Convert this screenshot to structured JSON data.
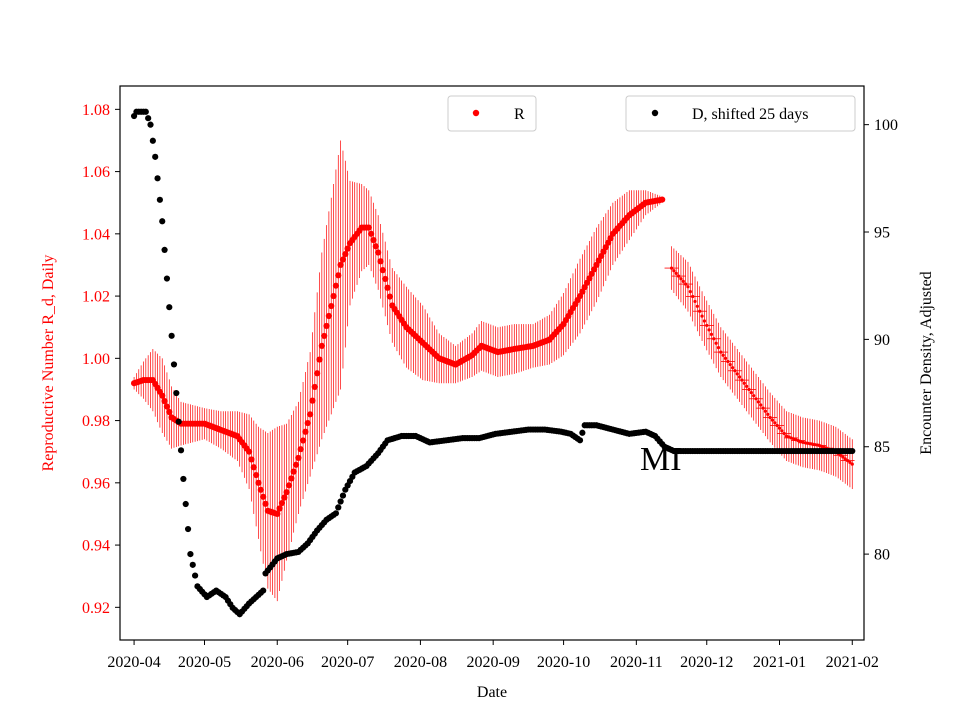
{
  "chart_data": {
    "type": "scatter",
    "xlabel": "Date",
    "x_ticks": [
      "2020-04",
      "2020-05",
      "2020-06",
      "2020-07",
      "2020-08",
      "2020-09",
      "2020-10",
      "2020-11",
      "2020-12",
      "2021-01",
      "2021-02"
    ],
    "x_range": [
      "2020-03-26",
      "2021-02-06"
    ],
    "y_left": {
      "label": "Reproductive Number R_d, Daily",
      "range": [
        0.9095,
        1.0875
      ],
      "ticks": [
        "0.92",
        "0.94",
        "0.96",
        "0.98",
        "1.00",
        "1.02",
        "1.04",
        "1.06",
        "1.08"
      ],
      "color": "#ff0000"
    },
    "y_right": {
      "label": "Encounter Density, Adjusted",
      "range": [
        76.0,
        101.8
      ],
      "ticks": [
        "80",
        "85",
        "90",
        "95",
        "100"
      ],
      "color": "#000000"
    },
    "annotation": "MI",
    "series": [
      {
        "name": "R",
        "axis": "left",
        "color": "#ff0000",
        "marker": "circle",
        "errorbars": true,
        "knots": [
          [
            "2020-04-01",
            0.992,
            0.002
          ],
          [
            "2020-04-05",
            0.993,
            0.006
          ],
          [
            "2020-04-09",
            0.993,
            0.01
          ],
          [
            "2020-04-13",
            0.988,
            0.012
          ],
          [
            "2020-04-17",
            0.981,
            0.01
          ],
          [
            "2020-04-21",
            0.979,
            0.007
          ],
          [
            "2020-05-01",
            0.979,
            0.005
          ],
          [
            "2020-05-08",
            0.977,
            0.006
          ],
          [
            "2020-05-15",
            0.975,
            0.008
          ],
          [
            "2020-05-20",
            0.97,
            0.012
          ],
          [
            "2020-05-24",
            0.96,
            0.018
          ],
          [
            "2020-05-28",
            0.951,
            0.025
          ],
          [
            "2020-06-01",
            0.95,
            0.028
          ],
          [
            "2020-06-05",
            0.957,
            0.022
          ],
          [
            "2020-06-10",
            0.968,
            0.018
          ],
          [
            "2020-06-15",
            0.982,
            0.02
          ],
          [
            "2020-06-20",
            1.004,
            0.03
          ],
          [
            "2020-06-25",
            1.02,
            0.036
          ],
          [
            "2020-06-28",
            1.03,
            0.04
          ],
          [
            "2020-07-02",
            1.037,
            0.02
          ],
          [
            "2020-07-07",
            1.042,
            0.014
          ],
          [
            "2020-07-10",
            1.042,
            0.012
          ],
          [
            "2020-07-14",
            1.034,
            0.012
          ],
          [
            "2020-07-20",
            1.017,
            0.012
          ],
          [
            "2020-07-26",
            1.01,
            0.013
          ],
          [
            "2020-08-02",
            1.005,
            0.012
          ],
          [
            "2020-08-09",
            1.0,
            0.008
          ],
          [
            "2020-08-16",
            0.998,
            0.006
          ],
          [
            "2020-08-23",
            1.001,
            0.007
          ],
          [
            "2020-08-27",
            1.004,
            0.008
          ],
          [
            "2020-09-03",
            1.002,
            0.008
          ],
          [
            "2020-09-10",
            1.003,
            0.008
          ],
          [
            "2020-09-18",
            1.004,
            0.007
          ],
          [
            "2020-09-25",
            1.006,
            0.008
          ],
          [
            "2020-10-01",
            1.011,
            0.01
          ],
          [
            "2020-10-08",
            1.02,
            0.012
          ],
          [
            "2020-10-15",
            1.03,
            0.012
          ],
          [
            "2020-10-22",
            1.04,
            0.01
          ],
          [
            "2020-10-29",
            1.046,
            0.008
          ],
          [
            "2020-11-05",
            1.05,
            0.004
          ],
          [
            "2020-11-12",
            1.051,
            0.001
          ]
        ],
        "gap": [
          "2020-11-13",
          "2020-11-15"
        ],
        "knots2": [
          [
            "2020-11-16",
            1.029,
            0.007
          ],
          [
            "2020-11-23",
            1.023,
            0.008
          ],
          [
            "2020-11-30",
            1.012,
            0.008
          ],
          [
            "2020-12-07",
            1.002,
            0.008
          ],
          [
            "2020-12-14",
            0.995,
            0.008
          ],
          [
            "2020-12-21",
            0.988,
            0.008
          ],
          [
            "2020-12-28",
            0.981,
            0.008
          ],
          [
            "2021-01-04",
            0.975,
            0.008
          ],
          [
            "2021-01-11",
            0.973,
            0.008
          ],
          [
            "2021-01-18",
            0.972,
            0.008
          ],
          [
            "2021-01-25",
            0.97,
            0.008
          ],
          [
            "2021-02-01",
            0.966,
            0.008
          ]
        ]
      },
      {
        "name": "D, shifted 25 days",
        "axis": "right",
        "color": "#000000",
        "marker": "circle",
        "knots": [
          [
            "2020-04-01",
            100.4
          ],
          [
            "2020-04-02",
            100.6
          ],
          [
            "2020-04-06",
            100.6
          ],
          [
            "2020-04-08",
            100.0
          ],
          [
            "2020-04-10",
            98.5
          ],
          [
            "2020-04-13",
            95.5
          ],
          [
            "2020-04-16",
            91.5
          ],
          [
            "2020-04-19",
            87.5
          ],
          [
            "2020-04-22",
            83.5
          ],
          [
            "2020-04-25",
            80.0
          ],
          [
            "2020-04-28",
            78.5
          ],
          [
            "2020-05-02",
            78.0
          ],
          [
            "2020-05-06",
            78.3
          ],
          [
            "2020-05-10",
            78.0
          ],
          [
            "2020-05-13",
            77.5
          ],
          [
            "2020-05-16",
            77.2
          ],
          [
            "2020-05-20",
            77.7
          ],
          [
            "2020-05-26",
            78.3
          ],
          [
            "2020-05-27",
            79.1
          ],
          [
            "2020-06-01",
            79.8
          ],
          [
            "2020-06-05",
            80.0
          ],
          [
            "2020-06-10",
            80.1
          ],
          [
            "2020-06-14",
            80.5
          ],
          [
            "2020-06-18",
            81.1
          ],
          [
            "2020-06-22",
            81.6
          ],
          [
            "2020-06-26",
            81.9
          ],
          [
            "2020-06-30",
            83.0
          ],
          [
            "2020-07-04",
            83.8
          ],
          [
            "2020-07-09",
            84.1
          ],
          [
            "2020-07-14",
            84.7
          ],
          [
            "2020-07-18",
            85.3
          ],
          [
            "2020-07-24",
            85.5
          ],
          [
            "2020-07-30",
            85.5
          ],
          [
            "2020-08-05",
            85.2
          ],
          [
            "2020-08-12",
            85.3
          ],
          [
            "2020-08-19",
            85.4
          ],
          [
            "2020-08-26",
            85.4
          ],
          [
            "2020-09-02",
            85.6
          ],
          [
            "2020-09-09",
            85.7
          ],
          [
            "2020-09-16",
            85.8
          ],
          [
            "2020-09-23",
            85.8
          ],
          [
            "2020-09-30",
            85.7
          ],
          [
            "2020-10-04",
            85.6
          ],
          [
            "2020-10-08",
            85.3
          ],
          [
            "2020-10-10",
            86.0
          ],
          [
            "2020-10-15",
            86.0
          ],
          [
            "2020-10-22",
            85.8
          ],
          [
            "2020-10-29",
            85.6
          ],
          [
            "2020-11-05",
            85.7
          ],
          [
            "2020-11-09",
            85.5
          ],
          [
            "2020-11-13",
            85.0
          ],
          [
            "2020-11-17",
            84.8
          ],
          [
            "2020-11-25",
            84.8
          ],
          [
            "2021-02-01",
            84.8
          ]
        ]
      }
    ]
  },
  "legend": {
    "left_entry": "R",
    "right_entry": "D, shifted 25 days"
  }
}
